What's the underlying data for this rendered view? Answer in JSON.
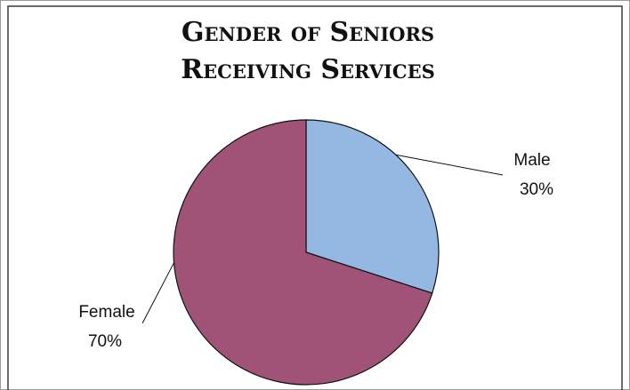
{
  "chart_data": {
    "type": "pie",
    "title_lines": [
      "Gender of Seniors",
      "Receiving Services"
    ],
    "slices": [
      {
        "label": "Male",
        "value": 30,
        "value_label": "30%",
        "color": "#95B8E2"
      },
      {
        "label": "Female",
        "value": 70,
        "value_label": "70%",
        "color": "#A05277"
      }
    ],
    "start_angle_deg": 0,
    "direction": "clockwise",
    "legend": "none",
    "outline_color": "#111111",
    "frame_colors": {
      "outer": "#9a9a9a",
      "inner": "#3a3a3a",
      "background": "#ffffff"
    }
  }
}
